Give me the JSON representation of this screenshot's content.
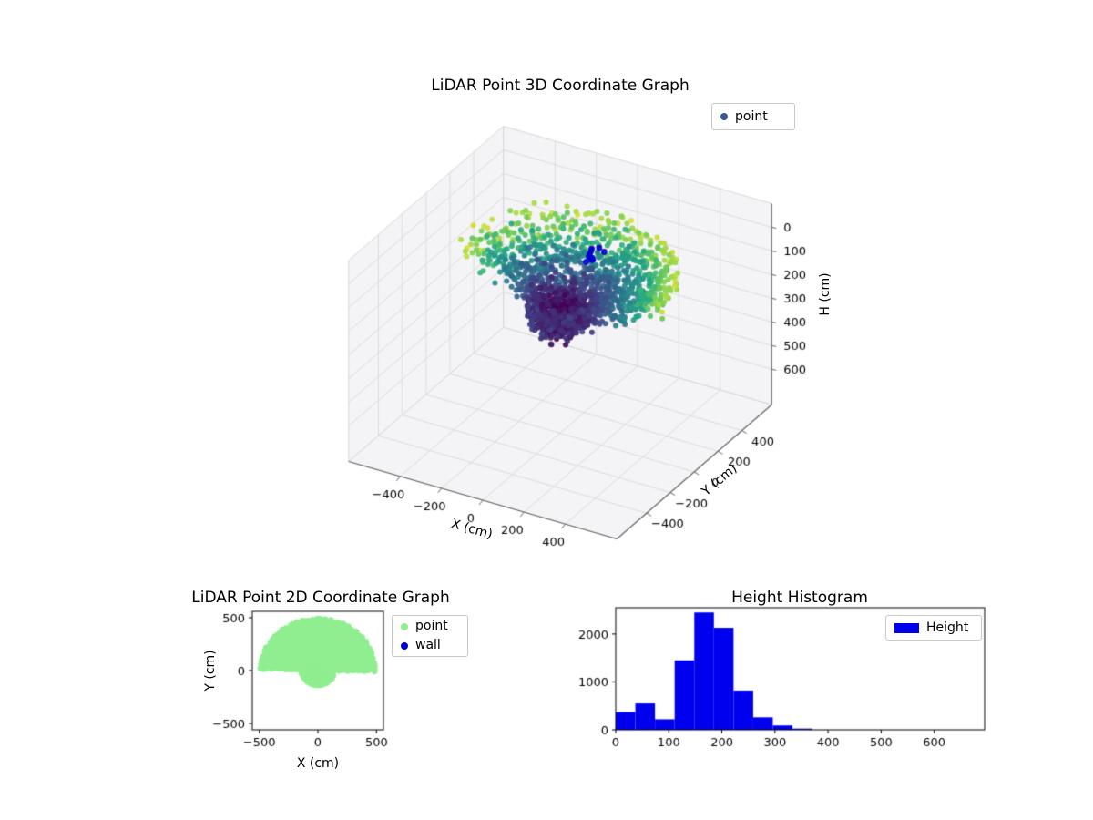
{
  "colors": {
    "viridis": [
      [
        0,
        "#440154"
      ],
      [
        0.2,
        "#414487"
      ],
      [
        0.4,
        "#2a788e"
      ],
      [
        0.6,
        "#22a884"
      ],
      [
        0.8,
        "#7ad151"
      ],
      [
        1,
        "#fde725"
      ]
    ],
    "pane": "#f4f4f6",
    "grid": "#dcdcdc",
    "spine": "#666666",
    "tick_text": "#000000",
    "point2d": "#90ee90",
    "wall": "#0000cd",
    "hist_bar": "#0000ee",
    "legend3d_marker": "#365c8d"
  },
  "chart_data": [
    {
      "id": "lidar-3d",
      "type": "scatter3d",
      "title": "LiDAR Point 3D Coordinate Graph",
      "legend": [
        {
          "label": "point"
        }
      ],
      "xlabel": "X (cm)",
      "ylabel": "Y (cm)",
      "zlabel": "H (cm)",
      "xlim": [
        -650,
        650
      ],
      "ylim": [
        -650,
        650
      ],
      "hlim": [
        -100,
        750
      ],
      "h_axis_inverted": true,
      "xticks": [
        -400,
        -200,
        0,
        200,
        400
      ],
      "xtick_labels": [
        "−400",
        "−200",
        "0",
        "200",
        "400"
      ],
      "yticks": [
        -400,
        -200,
        0,
        200,
        400
      ],
      "ytick_labels": [
        "−400",
        "−200",
        "0",
        "200",
        "400"
      ],
      "hticks": [
        0,
        100,
        200,
        300,
        400,
        500,
        600
      ],
      "htick_labels": [
        "0",
        "100",
        "200",
        "300",
        "400",
        "500",
        "600"
      ],
      "view": {
        "azim": -60,
        "elev": 30,
        "hscale": 0.75
      },
      "point_cloud": {
        "generator": "polar-grid",
        "seed": 11,
        "theta_step_deg": 2.4,
        "r_min": 25,
        "r_step": 27,
        "r_max_upper": 505,
        "r_max_lower": 150,
        "h_base": 280,
        "h_slope": -0.4,
        "h_noise": 34,
        "h_min": 15,
        "h_max": 400,
        "color_by": "radius",
        "colormap": "viridis"
      },
      "wall_cluster": {
        "x": 60,
        "y": 170,
        "h": 60,
        "n": 10,
        "spread": 26
      }
    },
    {
      "id": "lidar-2d",
      "type": "scatter",
      "title": "LiDAR Point 2D Coordinate Graph",
      "legend": [
        {
          "label": "point"
        },
        {
          "label": "wall"
        }
      ],
      "xlabel": "X (cm)",
      "ylabel": "Y (cm)",
      "xlim": [
        -560,
        560
      ],
      "ylim": [
        -560,
        560
      ],
      "xticks": [
        -500,
        0,
        500
      ],
      "xtick_labels": [
        "−500",
        "0",
        "500"
      ],
      "yticks": [
        -500,
        0,
        500
      ],
      "ytick_labels": [
        "−500",
        "0",
        "500"
      ]
    },
    {
      "id": "height-histogram",
      "type": "bar",
      "title": "Height Histogram",
      "legend": [
        {
          "label": "Height"
        }
      ],
      "bin_edges": [
        0,
        37,
        74,
        111,
        148,
        185,
        222,
        259,
        296,
        333,
        370
      ],
      "counts": [
        370,
        550,
        220,
        1450,
        2450,
        2130,
        820,
        260,
        90,
        25
      ],
      "xlim": [
        0,
        695
      ],
      "ylim": [
        0,
        2550
      ],
      "xticks": [
        0,
        100,
        200,
        300,
        400,
        500,
        600
      ],
      "xtick_labels": [
        "0",
        "100",
        "200",
        "300",
        "400",
        "500",
        "600"
      ],
      "yticks": [
        0,
        1000,
        2000
      ],
      "ytick_labels": [
        "0",
        "1000",
        "2000"
      ]
    }
  ]
}
